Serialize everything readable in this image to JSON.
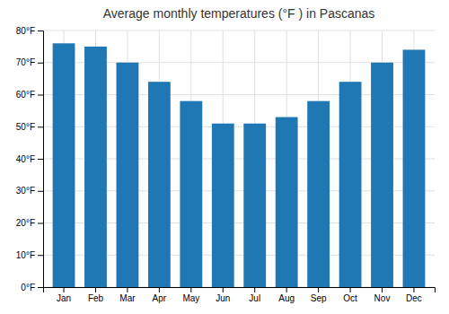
{
  "chart_data": {
    "type": "bar",
    "title": "Average monthly temperatures (°F ) in Pascanas",
    "categories": [
      "Jan",
      "Feb",
      "Mar",
      "Apr",
      "May",
      "Jun",
      "Jul",
      "Aug",
      "Sep",
      "Oct",
      "Nov",
      "Dec"
    ],
    "values": [
      76,
      75,
      70,
      64,
      58,
      51,
      51,
      53,
      58,
      64,
      70,
      74
    ],
    "ylim": [
      0,
      80
    ],
    "yticks": [
      {
        "value": 0,
        "label": "0°F"
      },
      {
        "value": 10,
        "label": "10°F"
      },
      {
        "value": 20,
        "label": "20°F"
      },
      {
        "value": 30,
        "label": "30°F"
      },
      {
        "value": 40,
        "label": "40°F"
      },
      {
        "value": 50,
        "label": "50°F"
      },
      {
        "value": 60,
        "label": "60°F"
      },
      {
        "value": 70,
        "label": "70°F"
      },
      {
        "value": 80,
        "label": "80°F"
      }
    ],
    "grid": true
  }
}
